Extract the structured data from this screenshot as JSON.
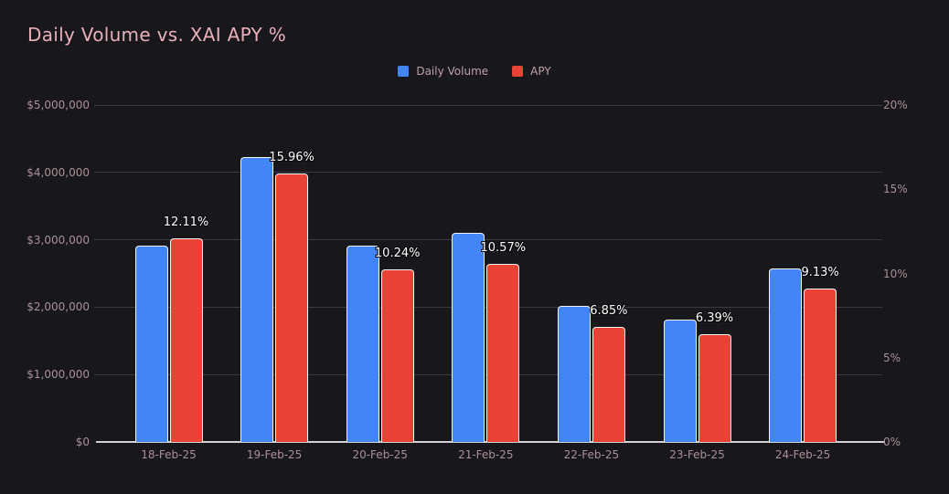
{
  "title": "Daily Volume vs. XAI APY %",
  "legend": {
    "items": [
      {
        "label": "Daily Volume",
        "color": "#4285f4"
      },
      {
        "label": "APY",
        "color": "#e94335"
      }
    ]
  },
  "colors": {
    "background": "#17171c",
    "title": "#eab0ba",
    "axis_label": "#ab9096",
    "legend_label": "#c0a1a8",
    "gridline": "#3a3a41",
    "axis_line": "#d2d2d4",
    "volume_bar": "#4285f4",
    "apy_bar": "#e94335",
    "bar_border": "#f3f3f3",
    "data_label": "#ffffff"
  },
  "chart_data": {
    "type": "bar",
    "title": "Daily Volume vs. XAI APY %",
    "categories": [
      "18-Feb-25",
      "19-Feb-25",
      "20-Feb-25",
      "21-Feb-25",
      "22-Feb-25",
      "23-Feb-25",
      "24-Feb-25"
    ],
    "series": [
      {
        "name": "Daily Volume",
        "axis": "left",
        "color": "#4285f4",
        "values": [
          2910000,
          4230000,
          2920000,
          3100000,
          2020000,
          1810000,
          2570000
        ]
      },
      {
        "name": "APY",
        "axis": "right",
        "color": "#e94335",
        "values": [
          12.11,
          15.96,
          10.24,
          10.57,
          6.85,
          6.39,
          9.13
        ],
        "data_labels": [
          "12.11%",
          "15.96%",
          "10.24%",
          "10.57%",
          "6.85%",
          "6.39%",
          "9.13%"
        ]
      }
    ],
    "left_axis": {
      "ticks": [
        "$0",
        "$1,000,000",
        "$2,000,000",
        "$3,000,000",
        "$4,000,000",
        "$5,000,000"
      ],
      "tick_values": [
        0,
        1000000,
        2000000,
        3000000,
        4000000,
        5000000
      ],
      "range": [
        0,
        5000000
      ]
    },
    "right_axis": {
      "ticks": [
        "0%",
        "5%",
        "10%",
        "15%",
        "20%"
      ],
      "tick_values": [
        0,
        5,
        10,
        15,
        20
      ],
      "range": [
        0,
        20
      ]
    },
    "grid": true,
    "legend_position": "top-center"
  }
}
